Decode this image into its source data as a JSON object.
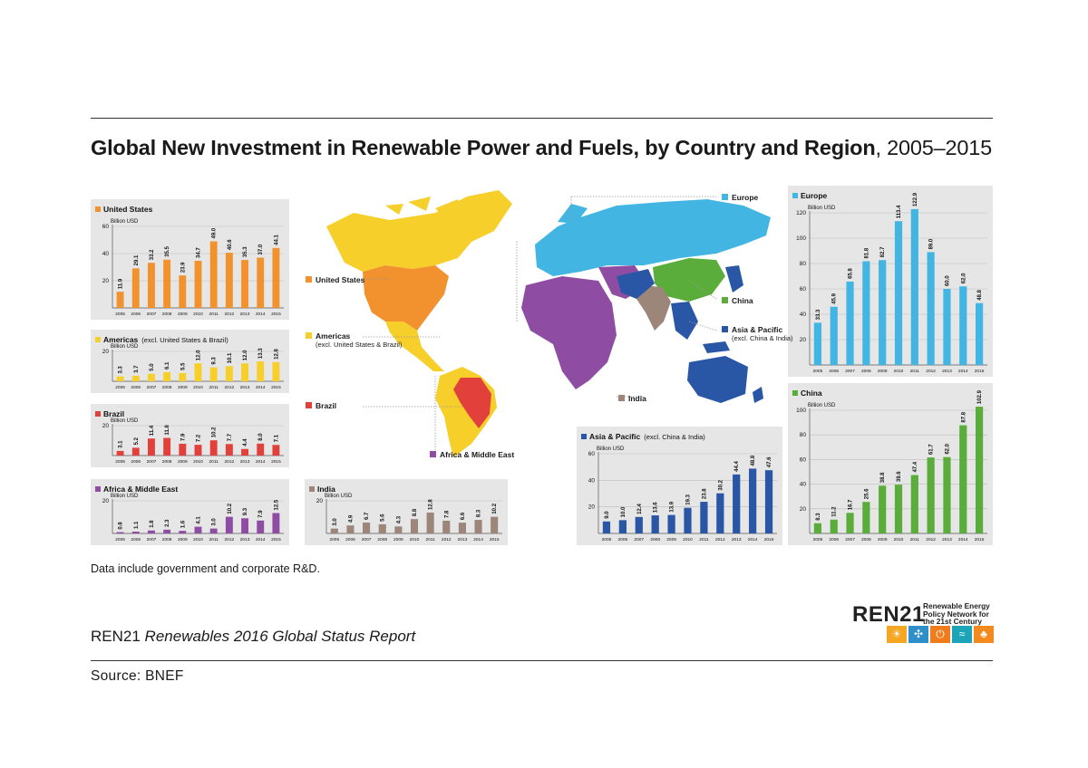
{
  "title": {
    "bold": "Global New Investment in Renewable Power and Fuels, by Country and Region",
    "normal": ", 2005–2015"
  },
  "note": "Data include government and corporate R&D.",
  "report": {
    "org": "REN21",
    "name": "Renewables 2016 Global Status Report"
  },
  "source": "Source: BNEF",
  "logo": {
    "word": "REN21",
    "tagline": "Renewable Energy Policy Network for the 21st Century"
  },
  "map_labels": {
    "us": "United States",
    "americas": "Americas",
    "americas_sub": "(excl. United States & Brazil)",
    "brazil": "Brazil",
    "africa": "Africa & Middle East",
    "europe": "Europe",
    "china": "China",
    "asia": "Asia & Pacific",
    "asia_sub": "(excl. China & India)",
    "india": "India"
  },
  "colors": {
    "us": "#f2922e",
    "americas": "#f7cf2b",
    "brazil": "#e2403b",
    "africa": "#8e4da3",
    "india": "#9c8579",
    "asia": "#2a56a6",
    "europe": "#42b5e3",
    "china": "#5aad3b",
    "panel_bg": "#e6e6e6"
  },
  "chart_data": [
    {
      "id": "us",
      "type": "bar",
      "title": "United States",
      "subtitle": "",
      "ylabel": "Billion USD",
      "categories": [
        "2005",
        "2006",
        "2007",
        "2008",
        "2009",
        "2010",
        "2011",
        "2012",
        "2013",
        "2014",
        "2015"
      ],
      "values": [
        11.9,
        29.1,
        33.2,
        35.5,
        23.9,
        34.7,
        49.0,
        40.6,
        35.3,
        37.0,
        44.1
      ],
      "value_labels": [
        "11.9",
        "29.1",
        "33.2",
        "35.5",
        "23.9",
        "34.7",
        "49.0",
        "40.6",
        "35.3",
        "37.0",
        "44.1"
      ],
      "yticks": [
        20,
        40,
        60
      ],
      "ylim": [
        0,
        60
      ]
    },
    {
      "id": "americas",
      "type": "bar",
      "title": "Americas",
      "subtitle": "(excl. United States & Brazil)",
      "ylabel": "Billion USD",
      "categories": [
        "2005",
        "2006",
        "2007",
        "2008",
        "2009",
        "2010",
        "2011",
        "2012",
        "2013",
        "2014",
        "2015"
      ],
      "values": [
        3.3,
        3.7,
        5.0,
        6.1,
        5.5,
        12.0,
        9.3,
        10.1,
        12.0,
        13.3,
        12.8
      ],
      "value_labels": [
        "3.3",
        "3.7",
        "5.0",
        "6.1",
        "5.5",
        "12.0",
        "9.3",
        "10.1",
        "12.0",
        "13.3",
        "12.8"
      ],
      "yticks": [
        20
      ],
      "ylim": [
        0,
        20
      ]
    },
    {
      "id": "brazil",
      "type": "bar",
      "title": "Brazil",
      "subtitle": "",
      "ylabel": "Billion USD",
      "categories": [
        "2005",
        "2006",
        "2007",
        "2008",
        "2009",
        "2010",
        "2011",
        "2012",
        "2013",
        "2014",
        "2015"
      ],
      "values": [
        3.1,
        5.2,
        11.4,
        11.8,
        7.9,
        7.2,
        10.2,
        7.7,
        4.4,
        8.0,
        7.1
      ],
      "value_labels": [
        "3.1",
        "5.2",
        "11.4",
        "11.8",
        "7.9",
        "7.2",
        "10.2",
        "7.7",
        "4.4",
        "8.0",
        "7.1"
      ],
      "yticks": [
        20
      ],
      "ylim": [
        0,
        20
      ]
    },
    {
      "id": "africa",
      "type": "bar",
      "title": "Africa & Middle East",
      "subtitle": "",
      "ylabel": "Billion USD",
      "categories": [
        "2005",
        "2006",
        "2007",
        "2008",
        "2009",
        "2010",
        "2011",
        "2012",
        "2013",
        "2014",
        "2015"
      ],
      "values": [
        0.8,
        1.1,
        1.8,
        2.3,
        1.6,
        4.1,
        3.0,
        10.2,
        9.3,
        7.9,
        12.5
      ],
      "value_labels": [
        "0.8",
        "1.1",
        "1.8",
        "2.3",
        "1.6",
        "4.1",
        "3.0",
        "10.2",
        "9.3",
        "7.9",
        "12.5"
      ],
      "yticks": [
        20
      ],
      "ylim": [
        0,
        20
      ]
    },
    {
      "id": "india",
      "type": "bar",
      "title": "India",
      "subtitle": "",
      "ylabel": "Billion USD",
      "categories": [
        "2005",
        "2006",
        "2007",
        "2008",
        "2009",
        "2010",
        "2011",
        "2012",
        "2013",
        "2014",
        "2015"
      ],
      "values": [
        3.0,
        4.9,
        6.7,
        5.6,
        4.3,
        8.8,
        12.8,
        7.8,
        6.6,
        8.3,
        10.2
      ],
      "value_labels": [
        "3.0",
        "4.9",
        "6.7",
        "5.6",
        "4.3",
        "8.8",
        "12.8",
        "7.8",
        "6.6",
        "8.3",
        "10.2"
      ],
      "yticks": [
        20
      ],
      "ylim": [
        0,
        20
      ]
    },
    {
      "id": "asia",
      "type": "bar",
      "title": "Asia & Pacific",
      "subtitle": "(excl. China & India)",
      "ylabel": "Billion USD",
      "categories": [
        "2005",
        "2006",
        "2007",
        "2008",
        "2009",
        "2010",
        "2011",
        "2012",
        "2013",
        "2014",
        "2015"
      ],
      "values": [
        9.0,
        10.0,
        12.4,
        13.6,
        13.9,
        19.3,
        23.8,
        30.2,
        44.4,
        48.8,
        47.6
      ],
      "value_labels": [
        "9.0",
        "10.0",
        "12.4",
        "13.6",
        "13.9",
        "19.3",
        "23.8",
        "30.2",
        "44.4",
        "48.8",
        "47.6"
      ],
      "yticks": [
        20,
        40,
        60
      ],
      "ylim": [
        0,
        60
      ]
    },
    {
      "id": "europe",
      "type": "bar",
      "title": "Europe",
      "subtitle": "",
      "ylabel": "Billion USD",
      "categories": [
        "2005",
        "2006",
        "2007",
        "2008",
        "2009",
        "2010",
        "2011",
        "2012",
        "2013",
        "2014",
        "2015"
      ],
      "values": [
        33.3,
        45.9,
        65.8,
        81.8,
        82.7,
        113.4,
        122.9,
        89.0,
        60.0,
        62.0,
        48.8
      ],
      "value_labels": [
        "33.3",
        "45.9",
        "65.8",
        "81.8",
        "82.7",
        "113.4",
        "122.9",
        "89.0",
        "60.0",
        "62.0",
        "48.8"
      ],
      "yticks": [
        20,
        40,
        60,
        80,
        100,
        120
      ],
      "ylim": [
        0,
        120
      ]
    },
    {
      "id": "china",
      "type": "bar",
      "title": "China",
      "subtitle": "",
      "ylabel": "Billion USD",
      "categories": [
        "2005",
        "2006",
        "2007",
        "2008",
        "2009",
        "2010",
        "2011",
        "2012",
        "2013",
        "2014",
        "2015"
      ],
      "values": [
        8.3,
        11.2,
        16.7,
        25.6,
        38.8,
        39.6,
        47.4,
        61.7,
        62.0,
        87.8,
        102.9
      ],
      "value_labels": [
        "8.3",
        "11.2",
        "16.7",
        "25.6",
        "38.8",
        "39.6",
        "47.4",
        "61.7",
        "62.0",
        "87.8",
        "102.9"
      ],
      "yticks": [
        20,
        40,
        60,
        80,
        100
      ],
      "ylim": [
        0,
        100
      ]
    }
  ]
}
